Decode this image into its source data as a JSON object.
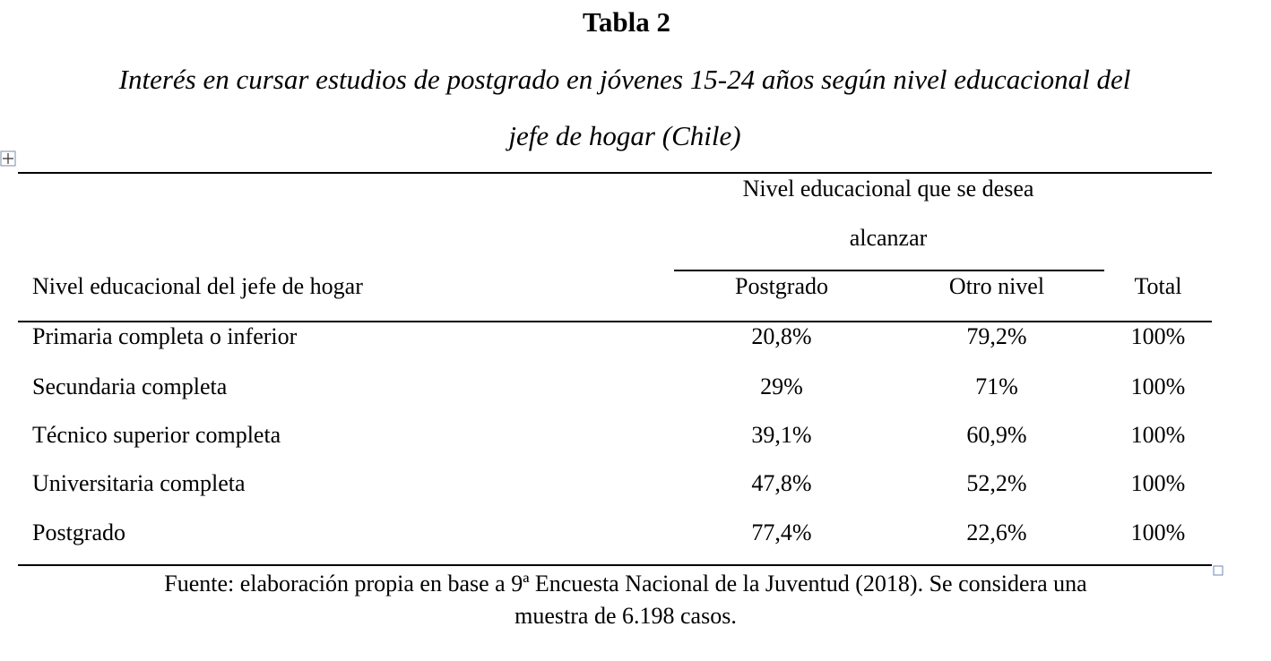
{
  "header": {
    "title": "Tabla 2",
    "subtitle_lines": [
      "Interés en cursar estudios de postgrado en jóvenes 15-24 años según nivel educacional del",
      "jefe de hogar (Chile)"
    ]
  },
  "table": {
    "group_header_lines": [
      "Nivel educacional que se desea",
      "alcanzar"
    ],
    "columns": [
      "Nivel educacional del jefe de hogar",
      "Postgrado",
      "Otro nivel",
      "Total"
    ],
    "rows": [
      [
        "Primaria completa o inferior",
        "20,8%",
        "79,2%",
        "100%"
      ],
      [
        "Secundaria completa",
        "29%",
        "71%",
        "100%"
      ],
      [
        "Técnico superior completa",
        "39,1%",
        "60,9%",
        "100%"
      ],
      [
        "Universitaria completa",
        "47,8%",
        "52,2%",
        "100%"
      ],
      [
        "Postgrado",
        "77,4%",
        "22,6%",
        "100%"
      ]
    ]
  },
  "footnote_lines": [
    "Fuente: elaboración propia en base a 9ª Encuesta Nacional de la Juventud (2018). Se considera una",
    "muestra de 6.198 casos."
  ]
}
